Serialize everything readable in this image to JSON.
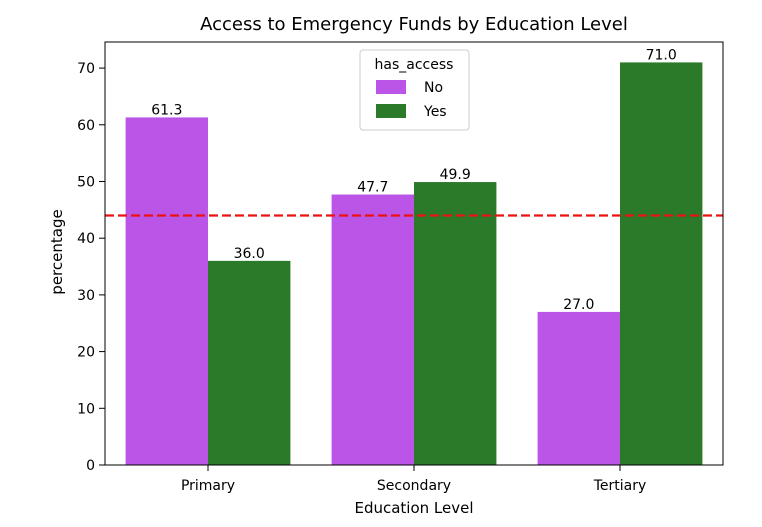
{
  "chart_data": {
    "type": "bar",
    "title": "Access to Emergency Funds by Education Level",
    "xlabel": "Education Level",
    "ylabel": "percentage",
    "categories": [
      "Primary",
      "Secondary",
      "Tertiary"
    ],
    "series": [
      {
        "name": "No",
        "values": [
          61.3,
          47.7,
          27.0
        ],
        "labels": [
          "61.3",
          "47.7",
          "27.0"
        ],
        "color": "#bb55e8"
      },
      {
        "name": "Yes",
        "values": [
          36.0,
          49.9,
          71.0
        ],
        "labels": [
          "36.0",
          "49.9",
          "71.0"
        ],
        "color": "#2a7a2a"
      }
    ],
    "ylim": [
      0,
      74.6
    ],
    "yticks": [
      0,
      10,
      20,
      30,
      40,
      50,
      60,
      70
    ],
    "legend": {
      "title": "has_access",
      "placement": "top-center"
    },
    "reference_line": {
      "value": 44,
      "color": "#ee1111",
      "style": "dashed"
    },
    "grid": false
  }
}
